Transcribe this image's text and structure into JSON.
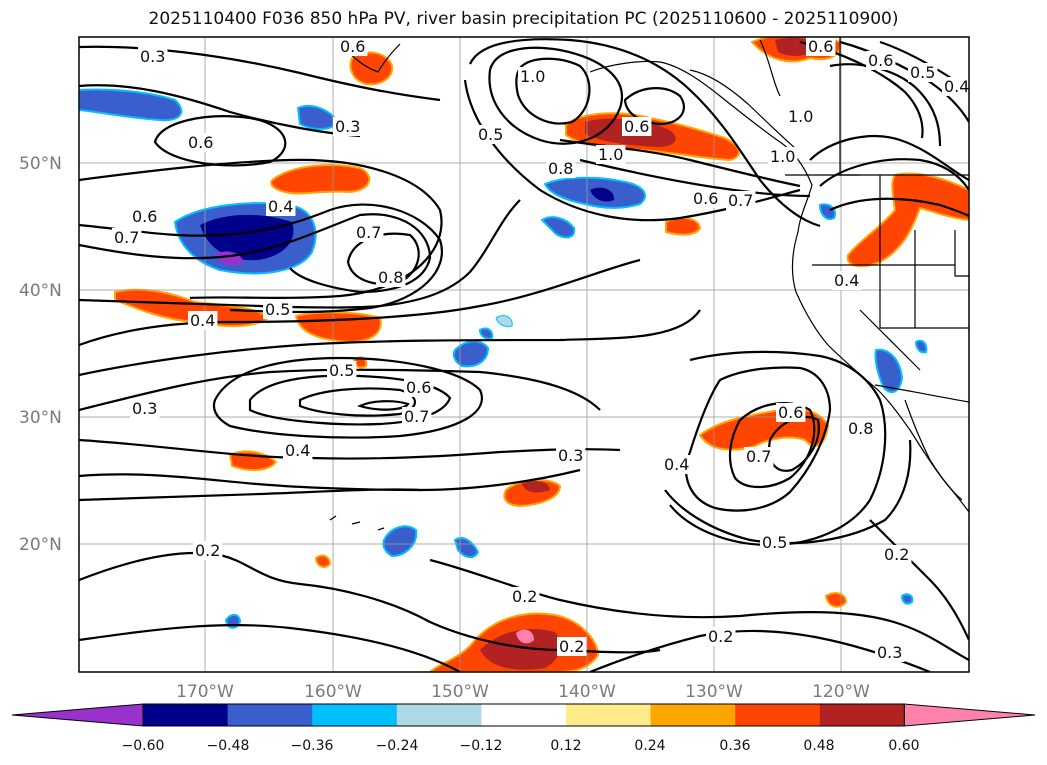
{
  "title": "2025110400 F036 850 hPa PV, river basin precipitation PC (2025110600 - 2025110900)",
  "map": {
    "lat_ticks": [
      "50°N",
      "40°N",
      "30°N",
      "20°N"
    ],
    "lon_ticks": [
      "170°W",
      "160°W",
      "150°W",
      "140°W",
      "130°W",
      "120°W"
    ],
    "contour_labels": [
      "0.3",
      "0.6",
      "0.3",
      "0.6",
      "0.4",
      "0.6",
      "0.7",
      "0.7",
      "0.8",
      "0.5",
      "0.4",
      "0.3",
      "0.5",
      "0.6",
      "0.7",
      "0.4",
      "0.3",
      "0.2",
      "0.2",
      "0.2",
      "0.2",
      "1.0",
      "0.5",
      "0.8",
      "1.0",
      "0.6",
      "0.6",
      "0.7",
      "1.0",
      "1.0",
      "0.6",
      "0.5",
      "0.4",
      "0.4",
      "0.6",
      "0.8",
      "0.7",
      "0.4",
      "0.5",
      "0.2",
      "0.3",
      "0.6"
    ]
  },
  "colorbar": {
    "ticks": [
      "−0.60",
      "−0.48",
      "−0.36",
      "−0.24",
      "−0.12",
      "0.12",
      "0.24",
      "0.36",
      "0.48",
      "0.60"
    ],
    "colors": [
      "#9932cc",
      "#00008b",
      "#3a5fcd",
      "#00bfff",
      "#add8e6",
      "#ffffff",
      "#ffec8b",
      "#ffa500",
      "#ff4500",
      "#b22222",
      "#ff82ab",
      "#ff82ab"
    ]
  }
}
